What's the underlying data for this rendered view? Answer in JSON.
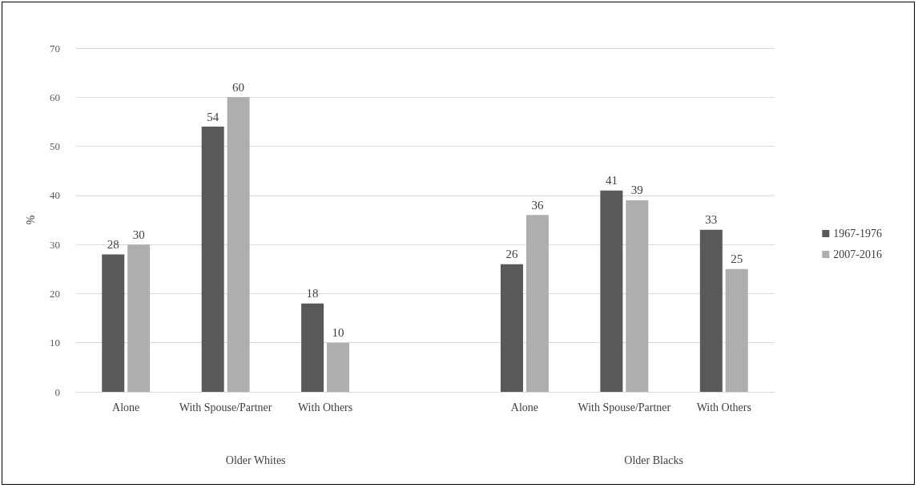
{
  "chart_data": {
    "type": "bar",
    "ylabel": "%",
    "categories": [
      "Alone",
      "With Spouse/Partner",
      "With Others",
      null,
      "Alone",
      "With Spouse/Partner",
      "With Others"
    ],
    "series": [
      {
        "name": "1967-1976",
        "color": "#595959",
        "values": [
          28,
          54,
          18,
          null,
          26,
          41,
          33
        ]
      },
      {
        "name": "2007-2016",
        "color": "#aeaeae",
        "values": [
          30,
          60,
          10,
          null,
          36,
          39,
          25
        ]
      }
    ],
    "ylim": [
      0,
      70
    ],
    "yticks": [
      0,
      10,
      20,
      30,
      40,
      50,
      60,
      70
    ],
    "grid": "y",
    "legend": "right",
    "data_labels": true,
    "annotations": [
      "Older Whites",
      "Older Blacks"
    ]
  }
}
